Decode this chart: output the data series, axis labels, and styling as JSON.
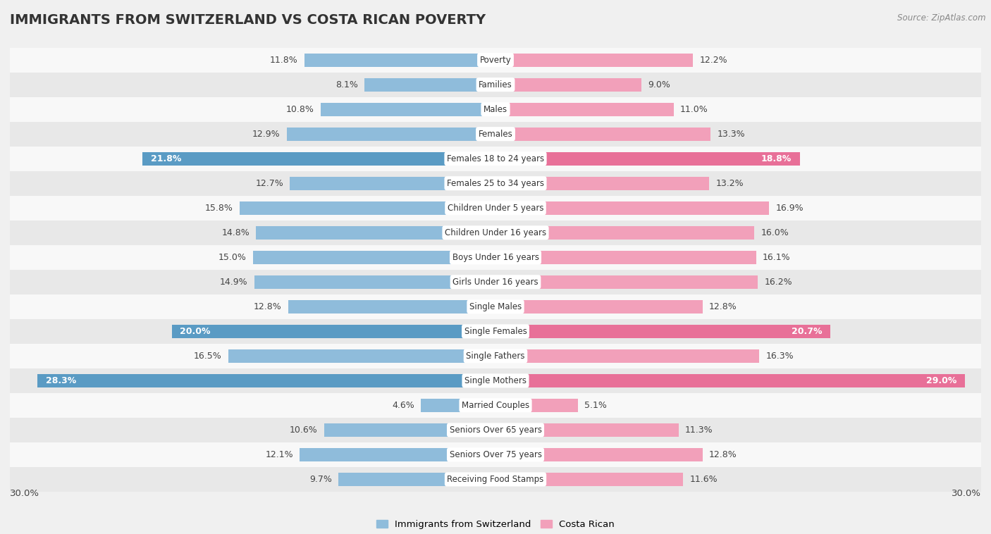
{
  "title": "IMMIGRANTS FROM SWITZERLAND VS COSTA RICAN POVERTY",
  "source": "Source: ZipAtlas.com",
  "categories": [
    "Poverty",
    "Families",
    "Males",
    "Females",
    "Females 18 to 24 years",
    "Females 25 to 34 years",
    "Children Under 5 years",
    "Children Under 16 years",
    "Boys Under 16 years",
    "Girls Under 16 years",
    "Single Males",
    "Single Females",
    "Single Fathers",
    "Single Mothers",
    "Married Couples",
    "Seniors Over 65 years",
    "Seniors Over 75 years",
    "Receiving Food Stamps"
  ],
  "switzerland_values": [
    11.8,
    8.1,
    10.8,
    12.9,
    21.8,
    12.7,
    15.8,
    14.8,
    15.0,
    14.9,
    12.8,
    20.0,
    16.5,
    28.3,
    4.6,
    10.6,
    12.1,
    9.7
  ],
  "costarican_values": [
    12.2,
    9.0,
    11.0,
    13.3,
    18.8,
    13.2,
    16.9,
    16.0,
    16.1,
    16.2,
    12.8,
    20.7,
    16.3,
    29.0,
    5.1,
    11.3,
    12.8,
    11.6
  ],
  "switzerland_color": "#8fbcdb",
  "costarican_color": "#f2a0ba",
  "highlight_switzerland": [
    4,
    11,
    13
  ],
  "highlight_costarican": [
    4,
    11,
    13
  ],
  "sw_highlight_color": "#5a9bc4",
  "cr_highlight_color": "#e87098",
  "bar_height": 0.55,
  "xlim": 30.0,
  "background_color": "#f0f0f0",
  "row_color_even": "#e8e8e8",
  "row_color_odd": "#f8f8f8",
  "label_fontsize": 9.5,
  "title_fontsize": 14,
  "legend_labels": [
    "Immigrants from Switzerland",
    "Costa Rican"
  ]
}
